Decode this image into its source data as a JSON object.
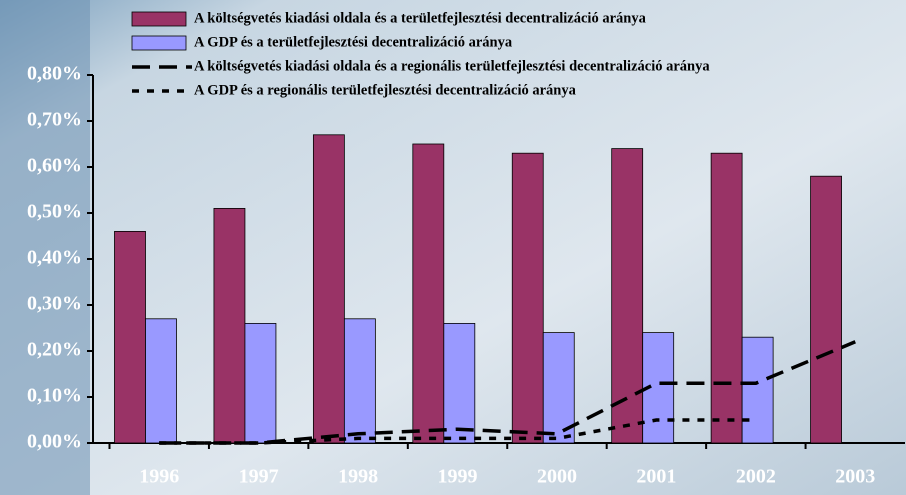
{
  "chart_data": {
    "type": "bar",
    "categories": [
      "1996",
      "1997",
      "1998",
      "1999",
      "2000",
      "2001",
      "2002",
      "2003"
    ],
    "series": [
      {
        "name": "A költségvetés kiadási oldala és a területfejlesztési decentralizáció aránya",
        "type": "bar",
        "color": "#993366",
        "values": [
          0.46,
          0.51,
          0.67,
          0.65,
          0.63,
          0.64,
          0.63,
          0.58
        ]
      },
      {
        "name": "A GDP és a területfejlesztési decentralizáció aránya",
        "type": "bar",
        "color": "#9999ff",
        "values": [
          0.27,
          0.26,
          0.27,
          0.26,
          0.24,
          0.24,
          0.23,
          null
        ]
      },
      {
        "name": "A költségvetés kiadási oldala és a regionális területfejlesztési decentralizáció aránya",
        "type": "line",
        "dash": "long",
        "color": "#000000",
        "values": [
          0.0,
          0.0,
          0.02,
          0.03,
          0.02,
          0.13,
          0.13,
          0.22
        ]
      },
      {
        "name": "A GDP és a regionális területfejlesztési decentralizáció aránya",
        "type": "line",
        "dash": "dotted",
        "color": "#000000",
        "values": [
          0.0,
          0.0,
          0.01,
          0.01,
          0.01,
          0.05,
          0.05,
          null
        ]
      }
    ],
    "ylim": [
      0,
      0.8
    ],
    "yticks": [
      {
        "value": 0,
        "label": "0,00%"
      },
      {
        "value": 0.1,
        "label": "0,10%"
      },
      {
        "value": 0.2,
        "label": "0,20%"
      },
      {
        "value": 0.3,
        "label": "0,30%"
      },
      {
        "value": 0.4,
        "label": "0,40%"
      },
      {
        "value": 0.5,
        "label": "0,50%"
      },
      {
        "value": 0.6,
        "label": "0,60%"
      },
      {
        "value": 0.7,
        "label": "0,70%"
      },
      {
        "value": 0.8,
        "label": "0,80%"
      }
    ]
  }
}
